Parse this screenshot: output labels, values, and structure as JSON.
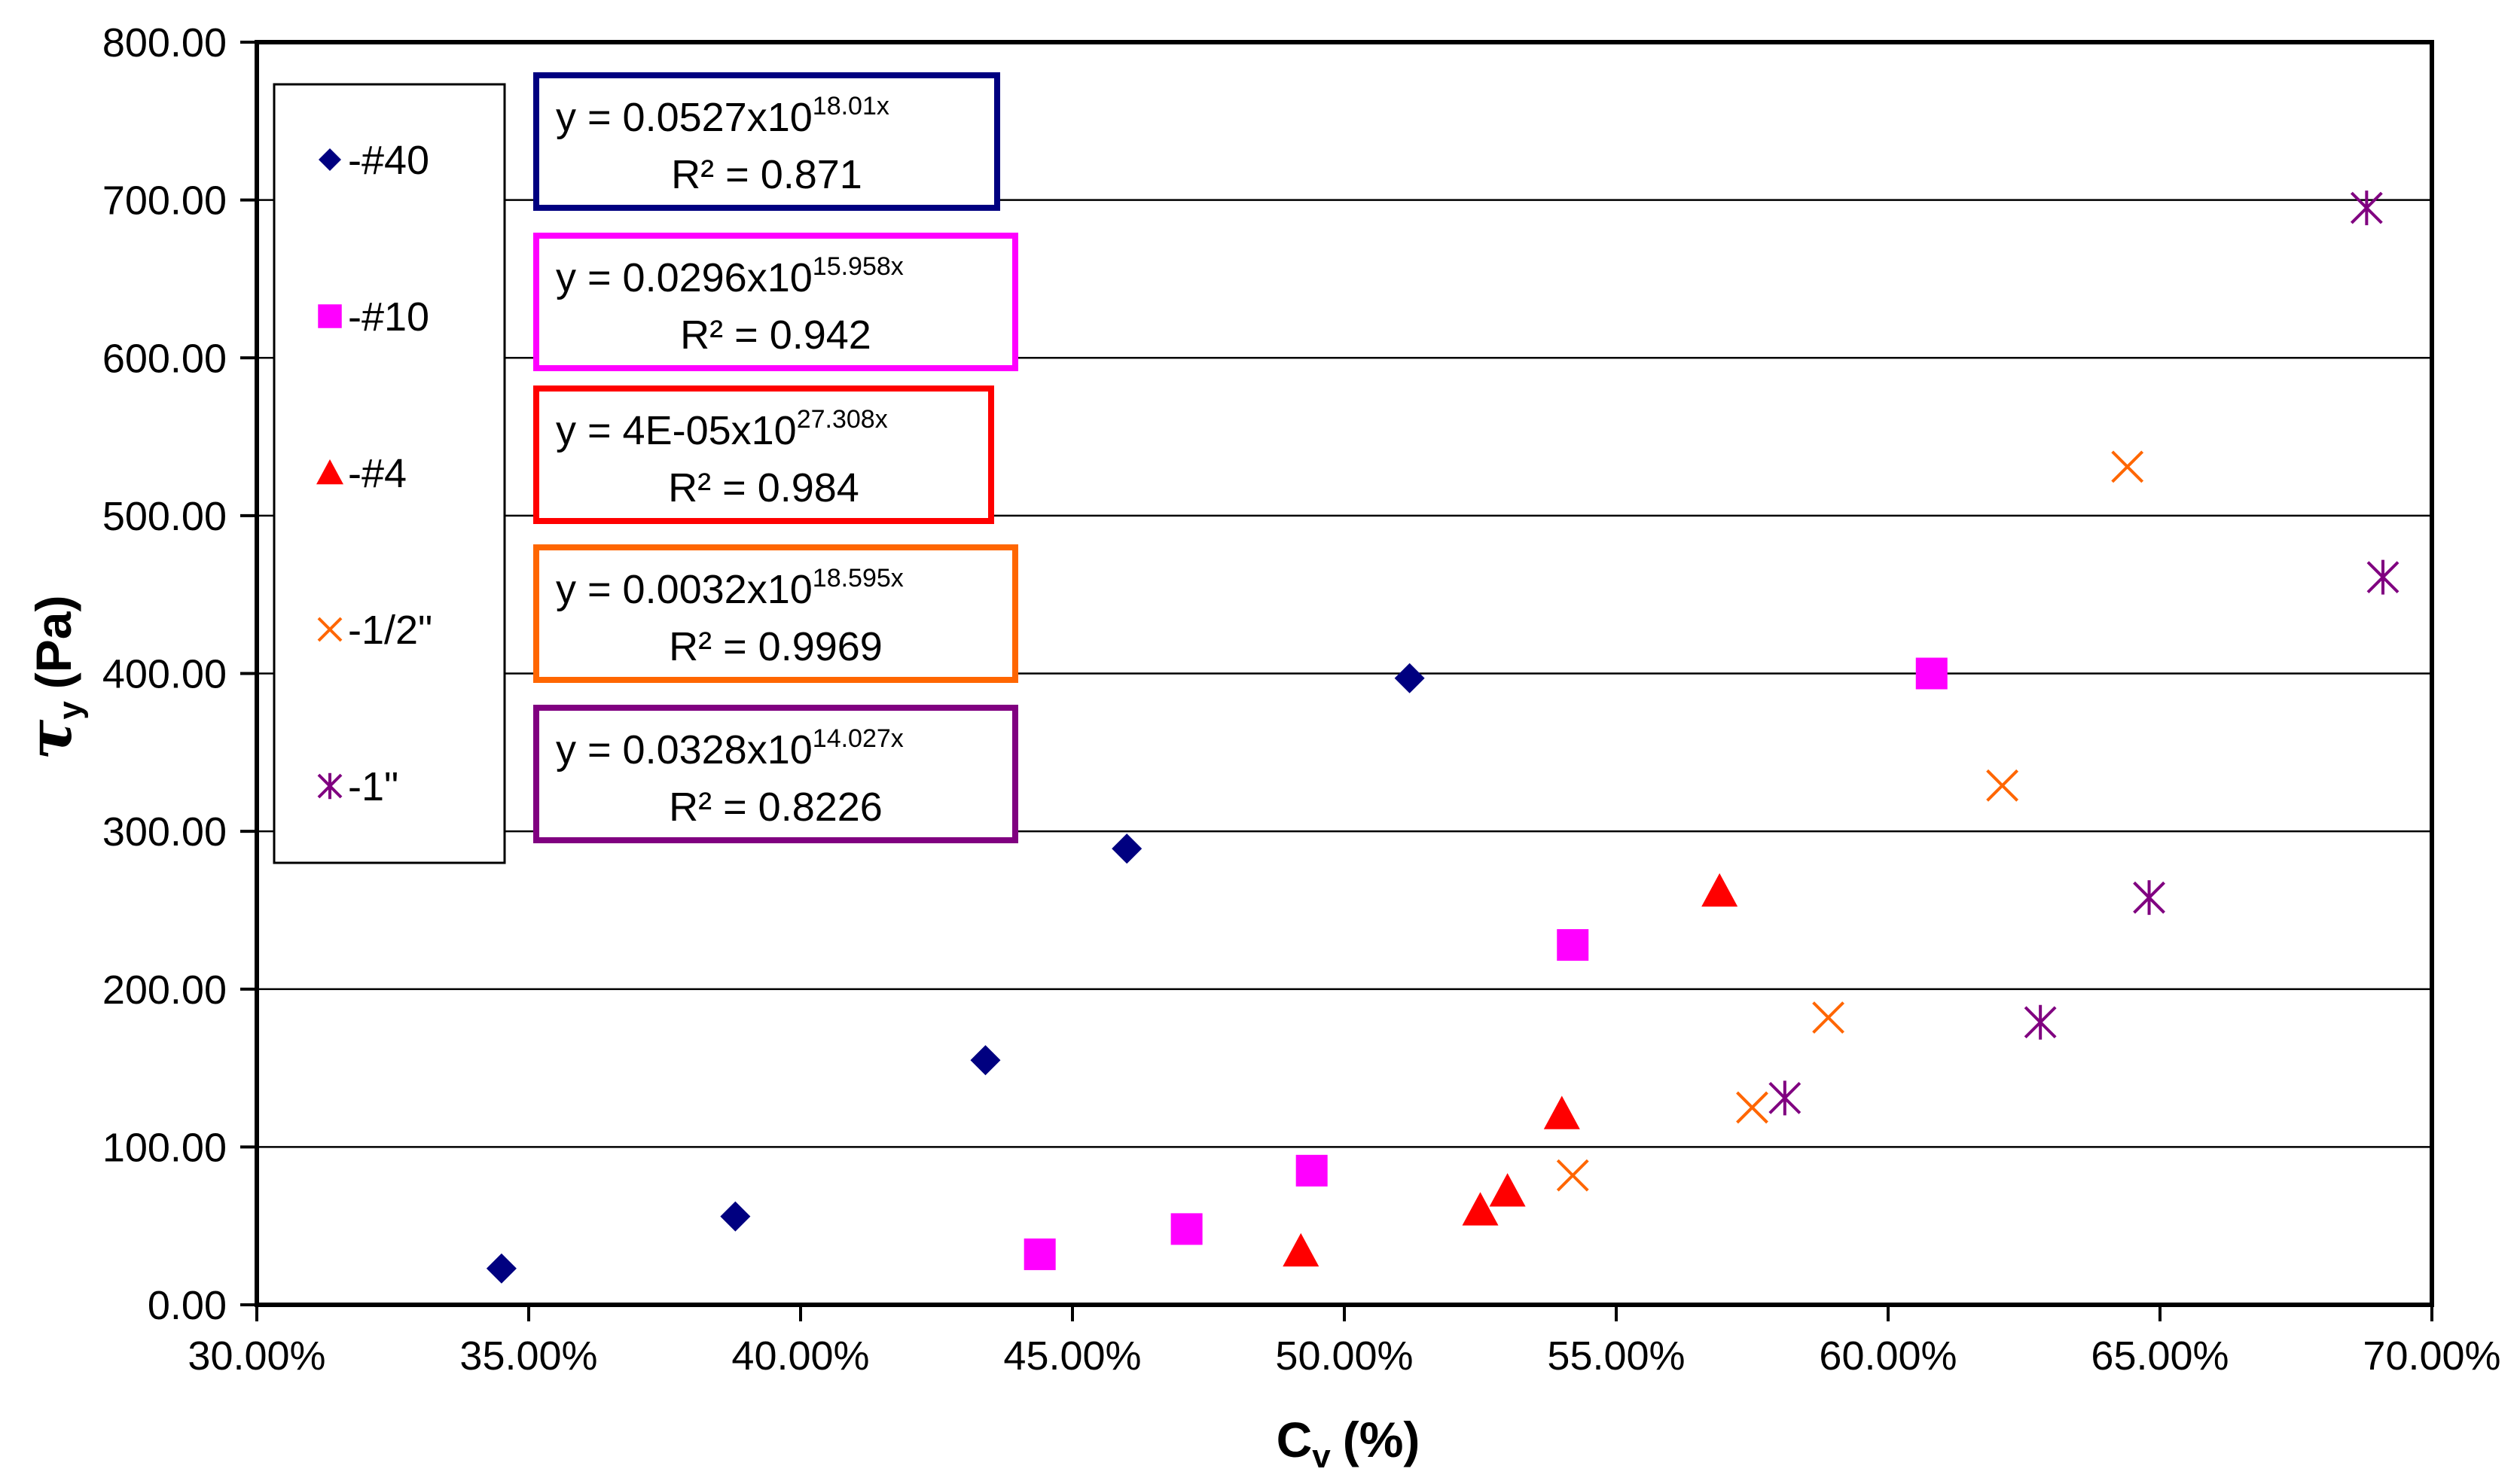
{
  "chart_data": {
    "type": "scatter",
    "title": "",
    "xlabel": "C",
    "xlabel_sub": "v",
    "xlabel_unit": "(%)",
    "ylabel": "τ",
    "ylabel_sub": "y",
    "ylabel_unit": "(Pa)",
    "xlim": [
      0.3,
      0.7
    ],
    "ylim": [
      0,
      800
    ],
    "x_ticks": [
      0.3,
      0.35,
      0.4,
      0.45,
      0.5,
      0.55,
      0.6,
      0.65,
      0.7
    ],
    "x_tick_labels": [
      "30.00%",
      "35.00%",
      "40.00%",
      "45.00%",
      "50.00%",
      "55.00%",
      "60.00%",
      "65.00%",
      "70.00%"
    ],
    "y_ticks": [
      0,
      100,
      200,
      300,
      400,
      500,
      600,
      700,
      800
    ],
    "y_tick_labels": [
      "0.00",
      "100.00",
      "200.00",
      "300.00",
      "400.00",
      "500.00",
      "600.00",
      "700.00",
      "800.00"
    ],
    "grid": "horizontal",
    "legend_position": "top-left",
    "series": [
      {
        "name": "-#40",
        "color": "#000080",
        "marker": "diamond",
        "points": [
          [
            0.345,
            23
          ],
          [
            0.388,
            56
          ],
          [
            0.434,
            155
          ],
          [
            0.46,
            289
          ],
          [
            0.512,
            397
          ]
        ],
        "trendline": {
          "a": 0.0527,
          "b": 18.01,
          "x_range": [
            0.345,
            0.512
          ],
          "equation_prefix": "y = 0.0527x10",
          "exponent": "18.01x",
          "r2_label": "R² = 0.871"
        }
      },
      {
        "name": "-#10",
        "color": "#FF00FF",
        "marker": "square",
        "points": [
          [
            0.444,
            32
          ],
          [
            0.471,
            48
          ],
          [
            0.494,
            85
          ],
          [
            0.542,
            228
          ],
          [
            0.608,
            400
          ]
        ],
        "trendline": {
          "a": 0.0296,
          "b": 15.958,
          "x_range": [
            0.444,
            0.608
          ],
          "equation_prefix": "y = 0.0296x10",
          "exponent": "15.958x",
          "r2_label": "R² = 0.942"
        }
      },
      {
        "name": "-#4",
        "color": "#FF0000",
        "marker": "triangle",
        "points": [
          [
            0.492,
            34
          ],
          [
            0.525,
            60
          ],
          [
            0.53,
            72
          ],
          [
            0.54,
            121
          ],
          [
            0.569,
            262
          ]
        ],
        "trendline": {
          "a": 4e-05,
          "b": 27.308,
          "x_range": [
            0.492,
            0.569
          ],
          "equation_prefix": "y = 4E-05x10",
          "exponent": "27.308x",
          "r2_label": "R² = 0.984"
        }
      },
      {
        "name": "-1/2\"",
        "color": "#FF6600",
        "marker": "x",
        "points": [
          [
            0.542,
            82
          ],
          [
            0.575,
            125
          ],
          [
            0.589,
            182
          ],
          [
            0.621,
            329
          ],
          [
            0.644,
            531
          ]
        ],
        "trendline": {
          "a": 0.0032,
          "b": 18.595,
          "x_range": [
            0.542,
            0.644
          ],
          "equation_prefix": "y = 0.0032x10",
          "exponent": "18.595x",
          "r2_label": "R² = 0.9969"
        }
      },
      {
        "name": "-1\"",
        "color": "#800080",
        "marker": "star",
        "points": [
          [
            0.581,
            131
          ],
          [
            0.628,
            179
          ],
          [
            0.648,
            258
          ],
          [
            0.688,
            695
          ],
          [
            0.691,
            461
          ]
        ],
        "trendline": {
          "a": 0.0328,
          "b": 14.027,
          "x_range": [
            0.581,
            0.691
          ],
          "equation_prefix": "y = 0.0328x10",
          "exponent": "14.027x",
          "r2_label": "R² = 0.8226"
        }
      }
    ]
  }
}
